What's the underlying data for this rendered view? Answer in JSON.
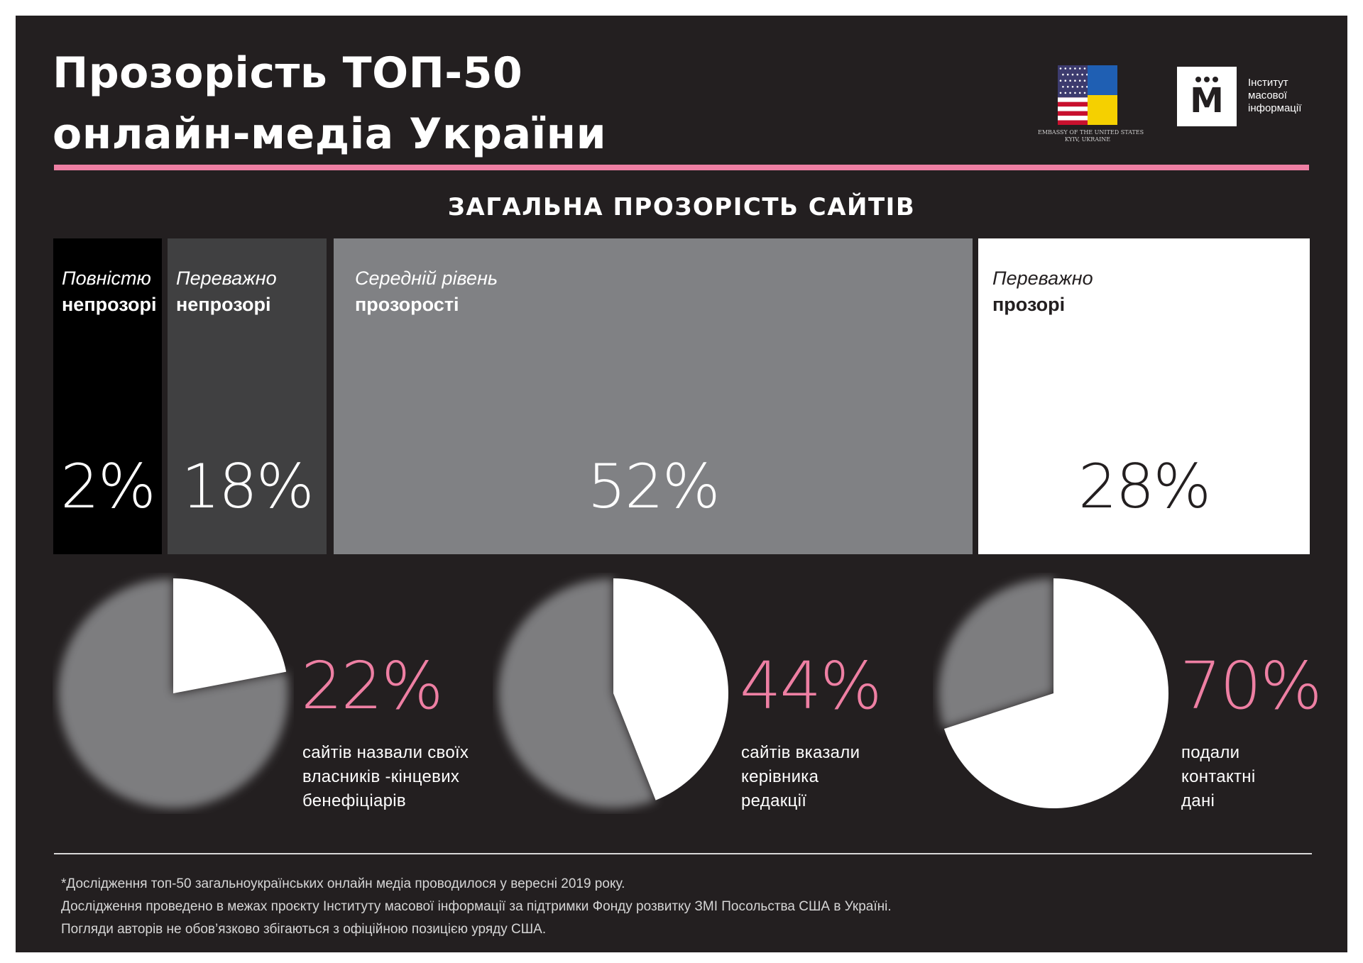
{
  "title_lines": [
    "Прозорість ТОП-50",
    "онлайн-медіа України"
  ],
  "section_title": "ЗАГАЛЬНА ПРОЗОРІСТЬ САЙТІВ",
  "logos": {
    "embassy_lines": [
      "EMBASSY OF THE UNITED STATES",
      "KYIV, UKRAINE"
    ],
    "imi_mark": "М",
    "imi_lines": [
      "Інститут",
      "масової",
      "інформації"
    ],
    "flag_colors": {
      "us_red": "#c8102e",
      "us_blue": "#3c3b6e",
      "ua_blue": "#1f5fb3",
      "ua_yellow": "#f5d000"
    }
  },
  "chart_data": [
    {
      "type": "bar",
      "title": "ЗАГАЛЬНА ПРОЗОРІСТЬ САЙТІВ",
      "categories": [
        {
          "line1": "Повністю",
          "line2": "непрозорі"
        },
        {
          "line1": "Переважно",
          "line2": "непрозорі"
        },
        {
          "line1": "Середній рівень",
          "line2": "прозорості"
        },
        {
          "line1": "Переважно",
          "line2": "прозорі"
        }
      ],
      "values": [
        2,
        18,
        52,
        28
      ],
      "value_labels": [
        "2%",
        "18%",
        "52%",
        "28%"
      ],
      "colors": [
        "#000000",
        "#404041",
        "#808184",
        "#ffffff"
      ],
      "text_colors": [
        "#ffffff",
        "#ffffff",
        "#ffffff",
        "#231f20"
      ]
    },
    {
      "type": "pie",
      "value": 22,
      "label": "22%",
      "caption": [
        "сайтів назвали своїх",
        "власників -кінцевих",
        "бенефіціарів"
      ]
    },
    {
      "type": "pie",
      "value": 44,
      "label": "44%",
      "caption": [
        "сайтів вказали",
        "керівника",
        "редакції"
      ]
    },
    {
      "type": "pie",
      "value": 70,
      "label": "70%",
      "caption": [
        "подали",
        "контактні",
        "дані"
      ]
    }
  ],
  "colors": {
    "background": "#231f20",
    "accent_pink": "#ee7fa3",
    "pie_gray": "#7d7d7f",
    "pie_white": "#ffffff"
  },
  "footnotes": [
    "*Дослідження топ-50 загальноукраїнських онлайн медіа проводилося у вересні 2019 року.",
    "Дослідження проведено в межах проєкту Інституту масової інформації за підтримки Фонду розвитку ЗМІ Посольства США в Україні.",
    "Погляди авторів не обов’язково збігаються з офіційною позицією уряду США."
  ]
}
